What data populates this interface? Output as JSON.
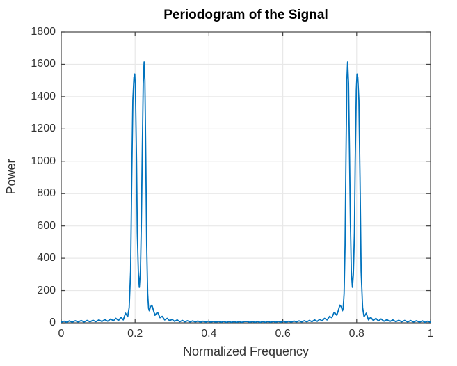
{
  "figure": {
    "title": "Periodogram of the Signal",
    "xlabel": "Normalized Frequency",
    "ylabel": "Power"
  },
  "colors": {
    "background": "#ffffff",
    "line": "#0072BD",
    "grid": "#e8e8e8",
    "axis": "#444444",
    "tick_text": "#333333",
    "title_text": "#000000"
  },
  "chart_data": {
    "type": "line",
    "title": "Periodogram of the Signal",
    "xlabel": "Normalized Frequency",
    "ylabel": "Power",
    "xlim": [
      0,
      1
    ],
    "ylim": [
      0,
      1800
    ],
    "xticks": [
      0,
      0.2,
      0.4,
      0.6,
      0.8,
      1
    ],
    "xtick_labels": [
      "0",
      "0.2",
      "0.4",
      "0.6",
      "0.8",
      "1"
    ],
    "yticks": [
      0,
      200,
      400,
      600,
      800,
      1000,
      1200,
      1400,
      1600,
      1800
    ],
    "ytick_labels": [
      "0",
      "200",
      "400",
      "600",
      "800",
      "1000",
      "1200",
      "1400",
      "1600",
      "1800"
    ],
    "grid": true,
    "legend": "none",
    "peaks": [
      {
        "x": 0.199,
        "power": 1540
      },
      {
        "x": 0.2245,
        "power": 1615
      },
      {
        "x": 0.7755,
        "power": 1615
      },
      {
        "x": 0.801,
        "power": 1540
      }
    ],
    "series": [
      {
        "name": "periodogram",
        "color": "#0072BD",
        "points": [
          [
            0.0,
            4
          ],
          [
            0.008,
            10
          ],
          [
            0.015,
            3
          ],
          [
            0.022,
            12
          ],
          [
            0.03,
            4
          ],
          [
            0.038,
            13
          ],
          [
            0.046,
            5
          ],
          [
            0.054,
            14
          ],
          [
            0.062,
            5
          ],
          [
            0.07,
            15
          ],
          [
            0.078,
            6
          ],
          [
            0.086,
            16
          ],
          [
            0.094,
            7
          ],
          [
            0.102,
            18
          ],
          [
            0.11,
            8
          ],
          [
            0.118,
            20
          ],
          [
            0.126,
            10
          ],
          [
            0.134,
            24
          ],
          [
            0.141,
            12
          ],
          [
            0.148,
            28
          ],
          [
            0.155,
            14
          ],
          [
            0.162,
            35
          ],
          [
            0.168,
            18
          ],
          [
            0.174,
            60
          ],
          [
            0.18,
            38
          ],
          [
            0.184,
            95
          ],
          [
            0.188,
            320
          ],
          [
            0.191,
            900
          ],
          [
            0.194,
            1380
          ],
          [
            0.197,
            1520
          ],
          [
            0.199,
            1540
          ],
          [
            0.201,
            1440
          ],
          [
            0.204,
            1000
          ],
          [
            0.206,
            560
          ],
          [
            0.209,
            300
          ],
          [
            0.2115,
            220
          ],
          [
            0.2145,
            320
          ],
          [
            0.217,
            620
          ],
          [
            0.2195,
            1080
          ],
          [
            0.222,
            1480
          ],
          [
            0.2245,
            1615
          ],
          [
            0.2265,
            1500
          ],
          [
            0.229,
            1020
          ],
          [
            0.2315,
            480
          ],
          [
            0.234,
            180
          ],
          [
            0.2365,
            90
          ],
          [
            0.2385,
            75
          ],
          [
            0.242,
            100
          ],
          [
            0.2455,
            110
          ],
          [
            0.25,
            75
          ],
          [
            0.2538,
            47
          ],
          [
            0.2575,
            58
          ],
          [
            0.261,
            65
          ],
          [
            0.2675,
            32
          ],
          [
            0.2735,
            40
          ],
          [
            0.28,
            18
          ],
          [
            0.287,
            28
          ],
          [
            0.294,
            12
          ],
          [
            0.3,
            22
          ],
          [
            0.307,
            9
          ],
          [
            0.314,
            18
          ],
          [
            0.321,
            7
          ],
          [
            0.328,
            15
          ],
          [
            0.335,
            6
          ],
          [
            0.342,
            13
          ],
          [
            0.349,
            5
          ],
          [
            0.356,
            12
          ],
          [
            0.363,
            5
          ],
          [
            0.37,
            11
          ],
          [
            0.377,
            4
          ],
          [
            0.384,
            10
          ],
          [
            0.391,
            4
          ],
          [
            0.398,
            10
          ],
          [
            0.405,
            4
          ],
          [
            0.412,
            9
          ],
          [
            0.419,
            4
          ],
          [
            0.426,
            9
          ],
          [
            0.433,
            3
          ],
          [
            0.44,
            9
          ],
          [
            0.447,
            3
          ],
          [
            0.454,
            8
          ],
          [
            0.461,
            3
          ],
          [
            0.468,
            8
          ],
          [
            0.475,
            3
          ],
          [
            0.482,
            8
          ],
          [
            0.489,
            3
          ],
          [
            0.496,
            8
          ],
          [
            0.504,
            8
          ],
          [
            0.511,
            3
          ],
          [
            0.518,
            8
          ],
          [
            0.525,
            3
          ],
          [
            0.532,
            8
          ],
          [
            0.539,
            3
          ],
          [
            0.546,
            8
          ],
          [
            0.553,
            3
          ],
          [
            0.56,
            9
          ],
          [
            0.567,
            3
          ],
          [
            0.574,
            9
          ],
          [
            0.581,
            4
          ],
          [
            0.588,
            9
          ],
          [
            0.595,
            4
          ],
          [
            0.602,
            10
          ],
          [
            0.609,
            4
          ],
          [
            0.616,
            10
          ],
          [
            0.623,
            4
          ],
          [
            0.63,
            11
          ],
          [
            0.637,
            5
          ],
          [
            0.644,
            12
          ],
          [
            0.651,
            5
          ],
          [
            0.658,
            13
          ],
          [
            0.665,
            6
          ],
          [
            0.672,
            15
          ],
          [
            0.679,
            7
          ],
          [
            0.686,
            18
          ],
          [
            0.693,
            9
          ],
          [
            0.7,
            22
          ],
          [
            0.706,
            12
          ],
          [
            0.713,
            28
          ],
          [
            0.72,
            18
          ],
          [
            0.7265,
            40
          ],
          [
            0.7325,
            32
          ],
          [
            0.739,
            65
          ],
          [
            0.7425,
            58
          ],
          [
            0.7462,
            47
          ],
          [
            0.75,
            75
          ],
          [
            0.7545,
            110
          ],
          [
            0.758,
            100
          ],
          [
            0.7615,
            75
          ],
          [
            0.7635,
            90
          ],
          [
            0.766,
            180
          ],
          [
            0.7685,
            480
          ],
          [
            0.771,
            1020
          ],
          [
            0.7735,
            1500
          ],
          [
            0.7755,
            1615
          ],
          [
            0.778,
            1480
          ],
          [
            0.7805,
            1080
          ],
          [
            0.783,
            620
          ],
          [
            0.7855,
            320
          ],
          [
            0.7885,
            220
          ],
          [
            0.791,
            300
          ],
          [
            0.794,
            560
          ],
          [
            0.796,
            1000
          ],
          [
            0.799,
            1440
          ],
          [
            0.801,
            1540
          ],
          [
            0.803,
            1520
          ],
          [
            0.806,
            1380
          ],
          [
            0.809,
            900
          ],
          [
            0.812,
            320
          ],
          [
            0.816,
            95
          ],
          [
            0.82,
            38
          ],
          [
            0.826,
            60
          ],
          [
            0.832,
            18
          ],
          [
            0.838,
            35
          ],
          [
            0.845,
            14
          ],
          [
            0.852,
            28
          ],
          [
            0.859,
            12
          ],
          [
            0.866,
            24
          ],
          [
            0.874,
            10
          ],
          [
            0.882,
            20
          ],
          [
            0.89,
            8
          ],
          [
            0.898,
            18
          ],
          [
            0.906,
            7
          ],
          [
            0.914,
            16
          ],
          [
            0.922,
            6
          ],
          [
            0.93,
            15
          ],
          [
            0.938,
            5
          ],
          [
            0.946,
            14
          ],
          [
            0.954,
            5
          ],
          [
            0.962,
            13
          ],
          [
            0.97,
            4
          ],
          [
            0.978,
            12
          ],
          [
            0.985,
            3
          ],
          [
            0.992,
            10
          ],
          [
            1.0,
            4
          ]
        ]
      }
    ]
  }
}
